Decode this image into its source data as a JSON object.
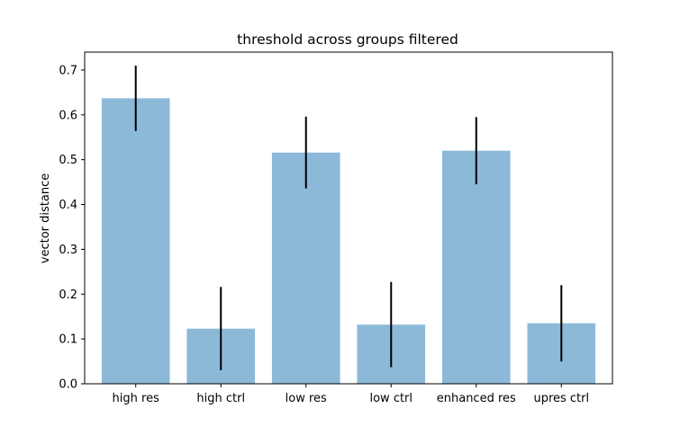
{
  "chart_data": {
    "type": "bar",
    "title": "threshold across groups filtered",
    "xlabel": "",
    "ylabel": "vector distance",
    "categories": [
      "high res",
      "high ctrl",
      "low res",
      "low ctrl",
      "enhanced res",
      "upres ctrl"
    ],
    "values": [
      0.637,
      0.123,
      0.516,
      0.132,
      0.52,
      0.135
    ],
    "errors": [
      0.073,
      0.093,
      0.08,
      0.095,
      0.075,
      0.085
    ],
    "ylim": [
      0,
      0.74
    ],
    "yticks": [
      0.0,
      0.1,
      0.2,
      0.3,
      0.4,
      0.5,
      0.6,
      0.7
    ],
    "ytick_labels": [
      "0.0",
      "0.1",
      "0.2",
      "0.3",
      "0.4",
      "0.5",
      "0.6",
      "0.7"
    ],
    "grid": false,
    "legend": "none",
    "colors": {
      "bar": "#8db9d9",
      "error": "#000000"
    }
  }
}
